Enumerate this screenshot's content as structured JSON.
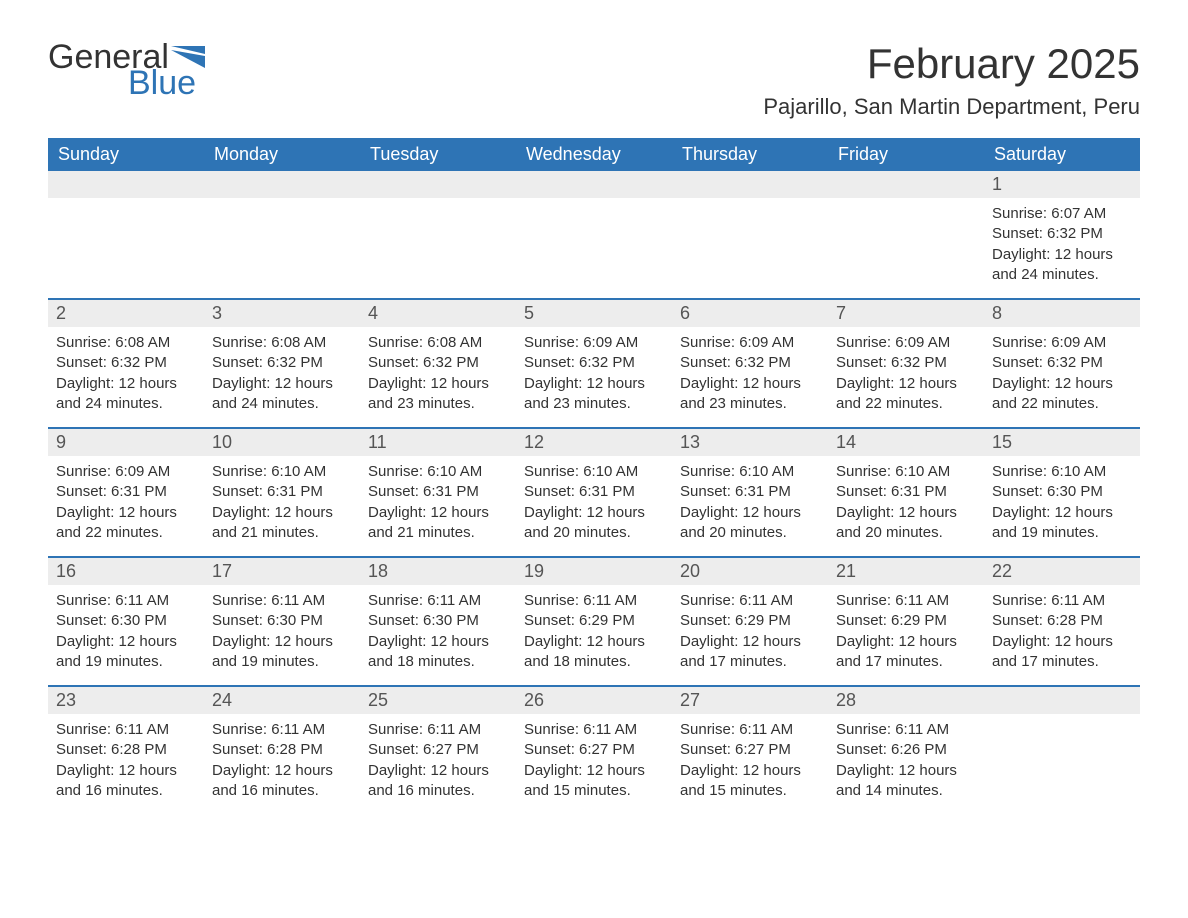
{
  "brand": {
    "general": "General",
    "blue": "Blue"
  },
  "title": "February 2025",
  "location": "Pajarillo, San Martin Department, Peru",
  "colors": {
    "accent": "#2e74b5",
    "header_text": "#ffffff",
    "daynum_bg": "#ededed",
    "text": "#333333",
    "bg": "#ffffff"
  },
  "days_of_week": [
    "Sunday",
    "Monday",
    "Tuesday",
    "Wednesday",
    "Thursday",
    "Friday",
    "Saturday"
  ],
  "labels": {
    "sunrise": "Sunrise:",
    "sunset": "Sunset:",
    "daylight": "Daylight:"
  },
  "weeks": [
    [
      null,
      null,
      null,
      null,
      null,
      null,
      {
        "n": "1",
        "sunrise": "6:07 AM",
        "sunset": "6:32 PM",
        "daylight": "12 hours and 24 minutes."
      }
    ],
    [
      {
        "n": "2",
        "sunrise": "6:08 AM",
        "sunset": "6:32 PM",
        "daylight": "12 hours and 24 minutes."
      },
      {
        "n": "3",
        "sunrise": "6:08 AM",
        "sunset": "6:32 PM",
        "daylight": "12 hours and 24 minutes."
      },
      {
        "n": "4",
        "sunrise": "6:08 AM",
        "sunset": "6:32 PM",
        "daylight": "12 hours and 23 minutes."
      },
      {
        "n": "5",
        "sunrise": "6:09 AM",
        "sunset": "6:32 PM",
        "daylight": "12 hours and 23 minutes."
      },
      {
        "n": "6",
        "sunrise": "6:09 AM",
        "sunset": "6:32 PM",
        "daylight": "12 hours and 23 minutes."
      },
      {
        "n": "7",
        "sunrise": "6:09 AM",
        "sunset": "6:32 PM",
        "daylight": "12 hours and 22 minutes."
      },
      {
        "n": "8",
        "sunrise": "6:09 AM",
        "sunset": "6:32 PM",
        "daylight": "12 hours and 22 minutes."
      }
    ],
    [
      {
        "n": "9",
        "sunrise": "6:09 AM",
        "sunset": "6:31 PM",
        "daylight": "12 hours and 22 minutes."
      },
      {
        "n": "10",
        "sunrise": "6:10 AM",
        "sunset": "6:31 PM",
        "daylight": "12 hours and 21 minutes."
      },
      {
        "n": "11",
        "sunrise": "6:10 AM",
        "sunset": "6:31 PM",
        "daylight": "12 hours and 21 minutes."
      },
      {
        "n": "12",
        "sunrise": "6:10 AM",
        "sunset": "6:31 PM",
        "daylight": "12 hours and 20 minutes."
      },
      {
        "n": "13",
        "sunrise": "6:10 AM",
        "sunset": "6:31 PM",
        "daylight": "12 hours and 20 minutes."
      },
      {
        "n": "14",
        "sunrise": "6:10 AM",
        "sunset": "6:31 PM",
        "daylight": "12 hours and 20 minutes."
      },
      {
        "n": "15",
        "sunrise": "6:10 AM",
        "sunset": "6:30 PM",
        "daylight": "12 hours and 19 minutes."
      }
    ],
    [
      {
        "n": "16",
        "sunrise": "6:11 AM",
        "sunset": "6:30 PM",
        "daylight": "12 hours and 19 minutes."
      },
      {
        "n": "17",
        "sunrise": "6:11 AM",
        "sunset": "6:30 PM",
        "daylight": "12 hours and 19 minutes."
      },
      {
        "n": "18",
        "sunrise": "6:11 AM",
        "sunset": "6:30 PM",
        "daylight": "12 hours and 18 minutes."
      },
      {
        "n": "19",
        "sunrise": "6:11 AM",
        "sunset": "6:29 PM",
        "daylight": "12 hours and 18 minutes."
      },
      {
        "n": "20",
        "sunrise": "6:11 AM",
        "sunset": "6:29 PM",
        "daylight": "12 hours and 17 minutes."
      },
      {
        "n": "21",
        "sunrise": "6:11 AM",
        "sunset": "6:29 PM",
        "daylight": "12 hours and 17 minutes."
      },
      {
        "n": "22",
        "sunrise": "6:11 AM",
        "sunset": "6:28 PM",
        "daylight": "12 hours and 17 minutes."
      }
    ],
    [
      {
        "n": "23",
        "sunrise": "6:11 AM",
        "sunset": "6:28 PM",
        "daylight": "12 hours and 16 minutes."
      },
      {
        "n": "24",
        "sunrise": "6:11 AM",
        "sunset": "6:28 PM",
        "daylight": "12 hours and 16 minutes."
      },
      {
        "n": "25",
        "sunrise": "6:11 AM",
        "sunset": "6:27 PM",
        "daylight": "12 hours and 16 minutes."
      },
      {
        "n": "26",
        "sunrise": "6:11 AM",
        "sunset": "6:27 PM",
        "daylight": "12 hours and 15 minutes."
      },
      {
        "n": "27",
        "sunrise": "6:11 AM",
        "sunset": "6:27 PM",
        "daylight": "12 hours and 15 minutes."
      },
      {
        "n": "28",
        "sunrise": "6:11 AM",
        "sunset": "6:26 PM",
        "daylight": "12 hours and 14 minutes."
      },
      null
    ]
  ]
}
